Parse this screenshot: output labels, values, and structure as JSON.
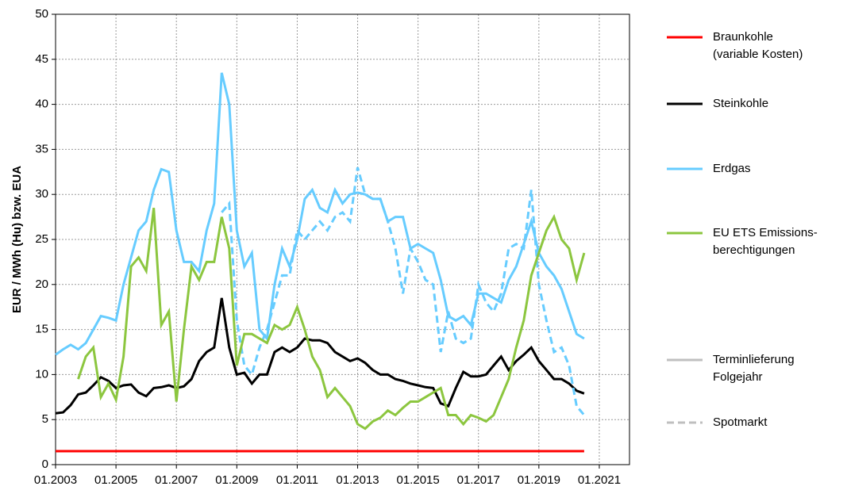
{
  "chart_data": {
    "type": "line",
    "ylabel": "EUR / MWh (Hu) bzw. EUA",
    "x": [
      2003,
      2003.25,
      2003.5,
      2003.75,
      2004,
      2004.25,
      2004.5,
      2004.75,
      2005,
      2005.25,
      2005.5,
      2005.75,
      2006,
      2006.25,
      2006.5,
      2006.75,
      2007,
      2007.25,
      2007.5,
      2007.75,
      2008,
      2008.25,
      2008.5,
      2008.75,
      2009,
      2009.25,
      2009.5,
      2009.75,
      2010,
      2010.25,
      2010.5,
      2010.75,
      2011,
      2011.25,
      2011.5,
      2011.75,
      2012,
      2012.25,
      2012.5,
      2012.75,
      2013,
      2013.25,
      2013.5,
      2013.75,
      2014,
      2014.25,
      2014.5,
      2014.75,
      2015,
      2015.25,
      2015.5,
      2015.75,
      2016,
      2016.25,
      2016.5,
      2016.75,
      2017,
      2017.25,
      2017.5,
      2017.75,
      2018,
      2018.25,
      2018.5,
      2018.75,
      2019,
      2019.25,
      2019.5,
      2019.75,
      2020,
      2020.25,
      2020.5
    ],
    "series": [
      {
        "name": "Braunkohle\n(variable Kosten)",
        "color": "#ff0000",
        "values": [
          1.5,
          1.5,
          1.5,
          1.5,
          1.5,
          1.5,
          1.5,
          1.5,
          1.5,
          1.5,
          1.5,
          1.5,
          1.5,
          1.5,
          1.5,
          1.5,
          1.5,
          1.5,
          1.5,
          1.5,
          1.5,
          1.5,
          1.5,
          1.5,
          1.5,
          1.5,
          1.5,
          1.5,
          1.5,
          1.5,
          1.5,
          1.5,
          1.5,
          1.5,
          1.5,
          1.5,
          1.5,
          1.5,
          1.5,
          1.5,
          1.5,
          1.5,
          1.5,
          1.5,
          1.5,
          1.5,
          1.5,
          1.5,
          1.5,
          1.5,
          1.5,
          1.5,
          1.5,
          1.5,
          1.5,
          1.5,
          1.5,
          1.5,
          1.5,
          1.5,
          1.5,
          1.5,
          1.5,
          1.5,
          1.5,
          1.5,
          1.5,
          1.5,
          1.5,
          1.5,
          1.5
        ]
      },
      {
        "name": "Steinkohle",
        "color": "#000000",
        "values": [
          5.7,
          5.8,
          6.6,
          7.8,
          8.0,
          8.8,
          9.7,
          9.3,
          8.5,
          8.8,
          8.9,
          8.0,
          7.6,
          8.5,
          8.6,
          8.8,
          8.5,
          8.7,
          9.5,
          11.5,
          12.5,
          13.0,
          18.5,
          13.0,
          10.0,
          10.2,
          9.0,
          10.0,
          10.0,
          12.5,
          13.0,
          12.5,
          13.0,
          14.0,
          13.8,
          13.8,
          13.5,
          12.5,
          12.0,
          11.5,
          11.8,
          11.3,
          10.5,
          10.0,
          10.0,
          9.5,
          9.3,
          9.0,
          8.8,
          8.6,
          8.5,
          6.8,
          6.5,
          8.5,
          10.3,
          9.8,
          9.8,
          10.0,
          11.0,
          12.0,
          10.5,
          11.5,
          12.2,
          13.0,
          11.5,
          10.5,
          9.5,
          9.5,
          9.0,
          8.2,
          7.9
        ]
      },
      {
        "name": "Erdgas",
        "color": "#66ccff",
        "values": [
          12.2,
          12.8,
          13.3,
          12.8,
          13.5,
          15,
          16.5,
          16.3,
          16.0,
          20,
          23,
          26,
          27,
          30.5,
          32.8,
          32.5,
          26,
          22.5,
          22.5,
          21.5,
          26,
          29,
          43.5,
          40,
          26,
          22,
          23.5,
          15,
          14,
          20,
          24,
          22,
          25,
          29.5,
          30.5,
          28.5,
          28,
          30.5,
          29,
          30,
          30.2,
          30,
          29.5,
          29.5,
          27,
          27.5,
          27.5,
          24,
          24.5,
          24,
          23.5,
          20.5,
          16.5,
          16,
          16.5,
          15.5,
          19,
          19,
          18.5,
          18,
          20.5,
          22,
          24.5,
          27,
          23.5,
          22,
          21,
          19.5,
          17,
          14.5,
          14
        ],
        "spot_values": [
          null,
          null,
          null,
          null,
          null,
          null,
          null,
          null,
          null,
          null,
          null,
          null,
          null,
          null,
          null,
          null,
          null,
          null,
          null,
          null,
          null,
          null,
          28,
          29,
          16,
          11,
          10,
          13,
          15,
          18,
          21,
          21,
          26,
          25,
          26,
          27,
          26,
          27.5,
          28,
          27,
          33,
          30,
          29.5,
          29.5,
          27,
          24,
          19,
          24,
          22.5,
          20.5,
          20,
          12.5,
          17,
          14,
          13.5,
          14,
          20,
          18,
          17,
          19,
          24,
          24.5,
          24,
          30.5,
          20,
          16,
          12.5,
          13,
          11,
          6.5,
          5.5
        ]
      },
      {
        "name": "EU ETS Emissions-\nberechtigungen",
        "color": "#8cc63f",
        "values": [
          null,
          null,
          null,
          9.5,
          12,
          13,
          7.5,
          9,
          7.2,
          12,
          22,
          23,
          21.5,
          28.5,
          15.5,
          17,
          7,
          15,
          22,
          20.5,
          22.5,
          22.5,
          27.5,
          24,
          11,
          14.5,
          14.5,
          14,
          13.5,
          15.5,
          15,
          15.5,
          17.5,
          15,
          12,
          10.5,
          7.5,
          8.5,
          7.5,
          6.5,
          4.5,
          4,
          4.8,
          5.2,
          6,
          5.5,
          6.3,
          7,
          7,
          7.5,
          8,
          8.5,
          5.5,
          5.5,
          4.5,
          5.5,
          5.2,
          4.8,
          5.5,
          7.5,
          9.5,
          13,
          16,
          21,
          23.5,
          26,
          27.5,
          25,
          24,
          20.5,
          23.5
        ]
      }
    ],
    "line_styles": [
      {
        "name": "Terminlieferung\nFolgejahr",
        "color": "#bfbfbf",
        "dashed": false
      },
      {
        "name": "Spotmarkt",
        "color": "#bfbfbf",
        "dashed": true
      }
    ],
    "xlim": [
      2003,
      2022
    ],
    "xticks": [
      {
        "value": 2003,
        "label": "01.2003"
      },
      {
        "value": 2005,
        "label": "01.2005"
      },
      {
        "value": 2007,
        "label": "01.2007"
      },
      {
        "value": 2009,
        "label": "01.2009"
      },
      {
        "value": 2011,
        "label": "01.2011"
      },
      {
        "value": 2013,
        "label": "01.2013"
      },
      {
        "value": 2015,
        "label": "01.2015"
      },
      {
        "value": 2017,
        "label": "01.2017"
      },
      {
        "value": 2019,
        "label": "01.2019"
      },
      {
        "value": 2021,
        "label": "01.2021"
      }
    ],
    "ylim": [
      0,
      50
    ],
    "yticks": [
      0,
      5,
      10,
      15,
      20,
      25,
      30,
      35,
      40,
      45,
      50
    ],
    "grid": true
  }
}
